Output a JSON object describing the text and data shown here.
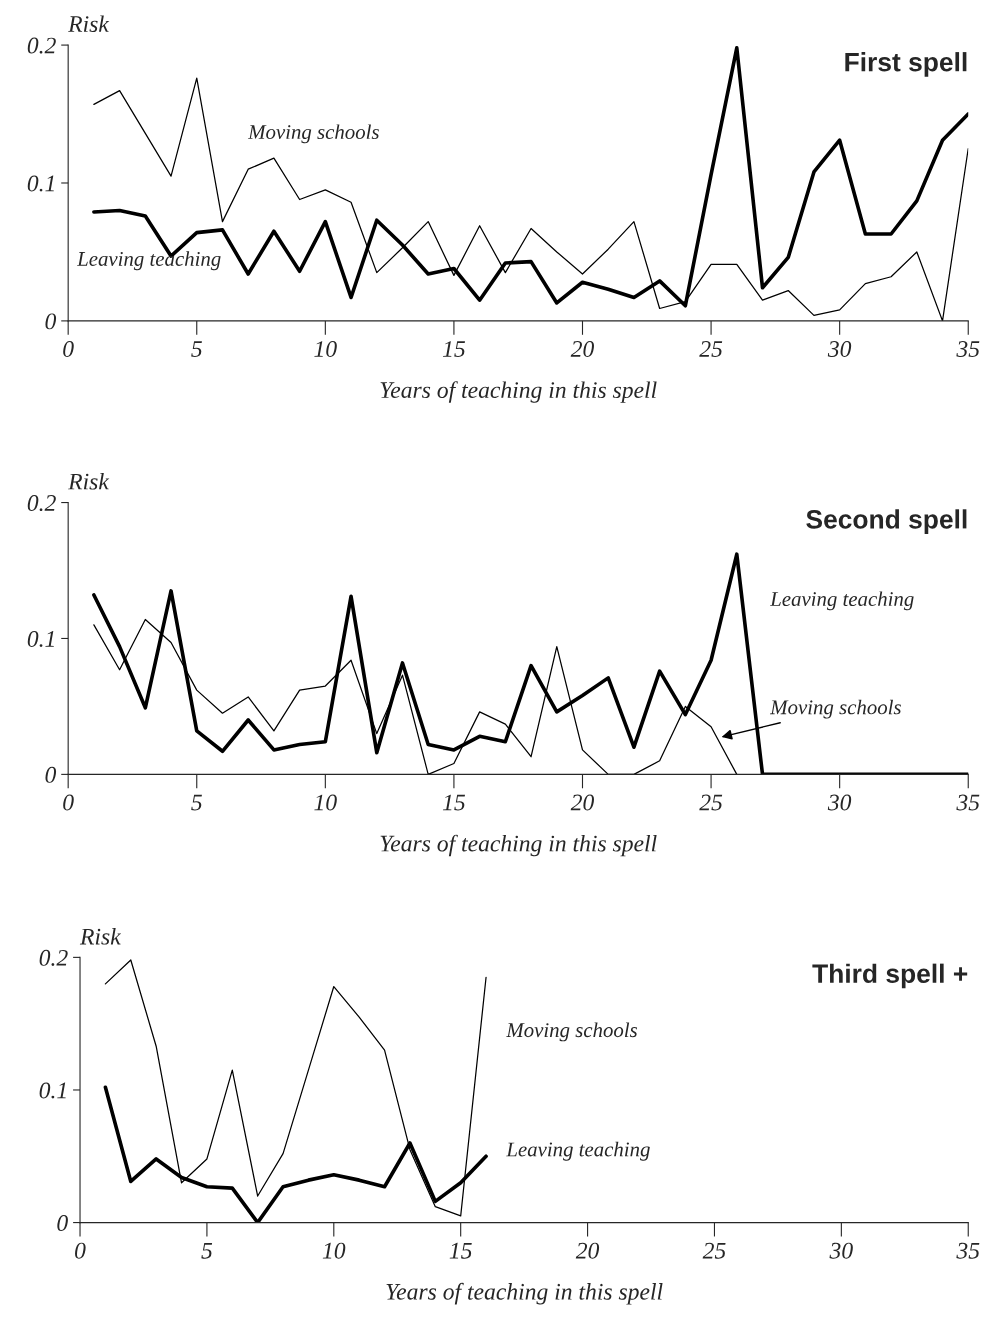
{
  "chart_data": [
    {
      "type": "line",
      "title": "First spell",
      "ylabel": "Risk",
      "xlabel": "Years of teaching in this spell",
      "x": [
        1,
        2,
        3,
        4,
        5,
        6,
        7,
        8,
        9,
        10,
        11,
        12,
        13,
        14,
        15,
        16,
        17,
        18,
        19,
        20,
        21,
        22,
        23,
        24,
        25,
        26,
        27,
        28,
        29,
        30,
        31,
        32,
        33,
        34,
        35
      ],
      "series": [
        {
          "name": "Moving schools",
          "color": "#000000",
          "values": [
            0.157,
            0.167,
            0.136,
            0.105,
            0.176,
            0.072,
            0.11,
            0.118,
            0.088,
            0.095,
            0.086,
            0.035,
            0.053,
            0.072,
            0.033,
            0.069,
            0.035,
            0.067,
            0.05,
            0.034,
            0.052,
            0.072,
            0.009,
            0.014,
            0.041,
            0.041,
            0.015,
            0.022,
            0.004,
            0.008,
            0.027,
            0.032,
            0.05,
            0.0,
            0.125
          ]
        },
        {
          "name": "Leaving teaching",
          "color": "#000000",
          "values": [
            0.079,
            0.08,
            0.076,
            0.047,
            0.064,
            0.066,
            0.034,
            0.065,
            0.036,
            0.072,
            0.017,
            0.073,
            0.055,
            0.034,
            0.038,
            0.015,
            0.042,
            0.043,
            0.013,
            0.028,
            0.023,
            0.017,
            0.029,
            0.011,
            0.106,
            0.198,
            0.024,
            0.046,
            0.108,
            0.131,
            0.063,
            0.063,
            0.087,
            0.131,
            0.15
          ]
        }
      ],
      "xlim": [
        0,
        35
      ],
      "xticks": [
        0,
        5,
        10,
        15,
        20,
        25,
        30,
        35
      ],
      "ylim": [
        0,
        0.2
      ],
      "yticks": [
        0,
        0.1,
        0.2
      ],
      "grid": false,
      "legend": false
    },
    {
      "type": "line",
      "title": "Second spell",
      "ylabel": "Risk",
      "xlabel": "Years of teaching in this spell",
      "x": [
        1,
        2,
        3,
        4,
        5,
        6,
        7,
        8,
        9,
        10,
        11,
        12,
        13,
        14,
        15,
        16,
        17,
        18,
        19,
        20,
        21,
        22,
        23,
        24,
        25,
        26,
        27,
        28,
        29,
        30,
        31,
        32,
        33,
        34,
        35
      ],
      "series": [
        {
          "name": "Leaving teaching",
          "color": "#000000",
          "values": [
            0.132,
            0.094,
            0.049,
            0.135,
            0.032,
            0.017,
            0.04,
            0.018,
            0.022,
            0.024,
            0.131,
            0.016,
            0.082,
            0.022,
            0.018,
            0.028,
            0.024,
            0.08,
            0.046,
            0.058,
            0.071,
            0.02,
            0.076,
            0.044,
            0.084,
            0.162,
            0,
            0,
            0,
            0,
            0,
            0,
            0,
            0,
            0
          ]
        },
        {
          "name": "Moving schools",
          "color": "#000000",
          "values": [
            0.11,
            0.077,
            0.114,
            0.097,
            0.062,
            0.045,
            0.057,
            0.032,
            0.062,
            0.065,
            0.084,
            0.03,
            0.073,
            0.0,
            0.008,
            0.046,
            0.037,
            0.013,
            0.094,
            0.018,
            0.0,
            0.0,
            0.01,
            0.05,
            0.035,
            0.0,
            null,
            null,
            null,
            null,
            null,
            null,
            null,
            null,
            null
          ]
        }
      ],
      "xlim": [
        0,
        35
      ],
      "xticks": [
        0,
        5,
        10,
        15,
        20,
        25,
        30,
        35
      ],
      "ylim": [
        0,
        0.2
      ],
      "yticks": [
        0,
        0.1,
        0.2
      ],
      "grid": false,
      "legend": false
    },
    {
      "type": "line",
      "title": "Third spell +",
      "ylabel": "Risk",
      "xlabel": "Years of teaching in this spell",
      "x": [
        1,
        2,
        3,
        4,
        5,
        6,
        7,
        8,
        9,
        10,
        11,
        12,
        13,
        14,
        15,
        16
      ],
      "series": [
        {
          "name": "Moving schools",
          "color": "#000000",
          "values": [
            0.18,
            0.198,
            0.133,
            0.03,
            0.048,
            0.115,
            0.02,
            0.052,
            0.115,
            0.178,
            0.155,
            0.13,
            0.055,
            0.012,
            0.005,
            0.185
          ]
        },
        {
          "name": "Leaving teaching",
          "color": "#000000",
          "values": [
            0.102,
            0.031,
            0.048,
            0.034,
            0.027,
            0.026,
            0.0,
            0.027,
            0.032,
            0.036,
            0.032,
            0.027,
            0.06,
            0.016,
            0.03,
            0.05
          ]
        }
      ],
      "xlim": [
        0,
        35
      ],
      "xticks": [
        0,
        5,
        10,
        15,
        20,
        25,
        30,
        35
      ],
      "ylim": [
        0,
        0.2
      ],
      "yticks": [
        0,
        0.1,
        0.2
      ],
      "grid": false,
      "legend": false
    }
  ]
}
